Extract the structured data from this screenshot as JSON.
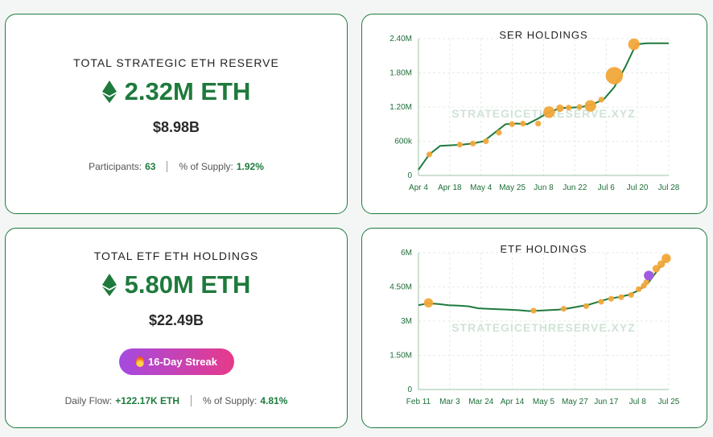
{
  "reserve": {
    "title": "TOTAL STRATEGIC ETH RESERVE",
    "amount": "2.32M ETH",
    "usd": "$8.98B",
    "participants_label": "Participants:",
    "participants_value": "63",
    "supply_label": "% of Supply:",
    "supply_value": "1.92%"
  },
  "etf": {
    "title": "TOTAL ETF ETH HOLDINGS",
    "amount": "5.80M ETH",
    "usd": "$22.49B",
    "streak": "16-Day Streak",
    "flow_label": "Daily Flow:",
    "flow_value": "+122.17K ETH",
    "supply_label": "% of Supply:",
    "supply_value": "4.81%"
  },
  "colors": {
    "accent": "#1e7a3c",
    "marker": "#f2a83a",
    "highlight": "#a15ae0",
    "eth_icon": "#1e7a3c"
  },
  "icons": {
    "eth": "ethereum-diamond-icon",
    "flame": "flame-icon"
  },
  "chart_data": [
    {
      "type": "line",
      "title": "SER HOLDINGS",
      "watermark": "STRATEGICETHRESERVE.XYZ",
      "x_ticks": [
        "Apr 4",
        "Apr 18",
        "May 4",
        "May 25",
        "Jun 8",
        "Jun 22",
        "Jul 6",
        "Jul 20",
        "Jul 28"
      ],
      "y_ticks": [
        "0",
        "600k",
        "1.20M",
        "1.80M",
        "2.40M"
      ],
      "ylim": [
        0,
        2400000
      ],
      "xlim": [
        0,
        115
      ],
      "grid": true,
      "x": [
        0,
        5,
        10,
        15,
        20,
        25,
        30,
        35,
        40,
        45,
        50,
        55,
        60,
        65,
        70,
        75,
        80,
        85,
        90,
        95,
        100,
        105,
        110,
        115
      ],
      "y": [
        100000,
        370000,
        520000,
        530000,
        540000,
        560000,
        600000,
        750000,
        900000,
        910000,
        900000,
        1000000,
        1110000,
        1180000,
        1190000,
        1200000,
        1250000,
        1330000,
        1550000,
        1900000,
        2300000,
        2320000,
        2320000,
        2320000
      ],
      "markers": [
        {
          "x": 5,
          "y": 370000,
          "size": 1
        },
        {
          "x": 19,
          "y": 540000,
          "size": 1
        },
        {
          "x": 25,
          "y": 560000,
          "size": 1
        },
        {
          "x": 31,
          "y": 600000,
          "size": 1
        },
        {
          "x": 37,
          "y": 750000,
          "size": 1
        },
        {
          "x": 43,
          "y": 900000,
          "size": 1
        },
        {
          "x": 48,
          "y": 910000,
          "size": 1
        },
        {
          "x": 55,
          "y": 910000,
          "size": 1
        },
        {
          "x": 60,
          "y": 1110000,
          "size": 2
        },
        {
          "x": 65,
          "y": 1180000,
          "size": 1.3
        },
        {
          "x": 69,
          "y": 1190000,
          "size": 1
        },
        {
          "x": 74,
          "y": 1200000,
          "size": 1
        },
        {
          "x": 79,
          "y": 1220000,
          "size": 2
        },
        {
          "x": 84,
          "y": 1330000,
          "size": 1
        },
        {
          "x": 90,
          "y": 1750000,
          "size": 3
        },
        {
          "x": 99,
          "y": 2300000,
          "size": 2
        }
      ]
    },
    {
      "type": "line",
      "title": "ETF HOLDINGS",
      "watermark": "STRATEGICETHRESERVE.XYZ",
      "x_ticks": [
        "Feb 11",
        "Mar 3",
        "Mar 24",
        "Apr 14",
        "May 5",
        "May 27",
        "Jun 17",
        "Jul 8",
        "Jul 25"
      ],
      "y_ticks": [
        "0",
        "1.50M",
        "3M",
        "4.50M",
        "6M"
      ],
      "ylim": [
        0,
        6000000
      ],
      "xlim": [
        0,
        100
      ],
      "grid": true,
      "x": [
        0,
        4,
        8,
        12,
        16,
        20,
        24,
        28,
        32,
        36,
        40,
        44,
        48,
        52,
        56,
        60,
        64,
        68,
        72,
        76,
        80,
        84,
        88,
        92,
        96,
        100
      ],
      "y": [
        3700000,
        3780000,
        3750000,
        3700000,
        3680000,
        3650000,
        3560000,
        3540000,
        3520000,
        3500000,
        3480000,
        3440000,
        3460000,
        3480000,
        3500000,
        3560000,
        3640000,
        3720000,
        3850000,
        3980000,
        4050000,
        4150000,
        4350000,
        4700000,
        5300000,
        5800000
      ],
      "markers": [
        {
          "x": 4,
          "y": 3800000,
          "size": 1.6
        },
        {
          "x": 46,
          "y": 3460000,
          "size": 1
        },
        {
          "x": 58,
          "y": 3540000,
          "size": 1
        },
        {
          "x": 67,
          "y": 3660000,
          "size": 1
        },
        {
          "x": 73,
          "y": 3850000,
          "size": 1
        },
        {
          "x": 77,
          "y": 3980000,
          "size": 1
        },
        {
          "x": 81,
          "y": 4050000,
          "size": 1
        },
        {
          "x": 85,
          "y": 4150000,
          "size": 1
        },
        {
          "x": 88,
          "y": 4400000,
          "size": 1
        },
        {
          "x": 90,
          "y": 4550000,
          "size": 1
        },
        {
          "x": 91,
          "y": 4700000,
          "size": 1
        },
        {
          "x": 92,
          "y": 4900000,
          "size": 1
        },
        {
          "x": 93,
          "y": 5050000,
          "size": 1
        },
        {
          "x": 95,
          "y": 5300000,
          "size": 1.3
        },
        {
          "x": 97,
          "y": 5500000,
          "size": 1.3
        },
        {
          "x": 99,
          "y": 5750000,
          "size": 1.6
        }
      ],
      "highlight": {
        "x": 92,
        "y": 5000000
      }
    }
  ]
}
